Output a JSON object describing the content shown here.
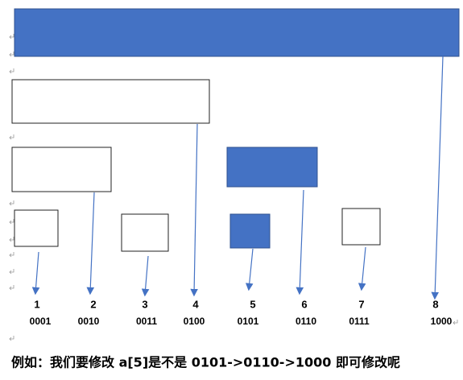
{
  "nodes": [
    {
      "index": "1",
      "bits": "0001"
    },
    {
      "index": "2",
      "bits": "0010"
    },
    {
      "index": "3",
      "bits": "0011"
    },
    {
      "index": "4",
      "bits": "0100"
    },
    {
      "index": "5",
      "bits": "0101"
    },
    {
      "index": "6",
      "bits": "0110"
    },
    {
      "index": "7",
      "bits": "0111"
    },
    {
      "index": "8",
      "bits": "1000"
    }
  ],
  "caption": "例如：我们要修改 a[5]是不是 0101->0110->1000 即可修改呢"
}
